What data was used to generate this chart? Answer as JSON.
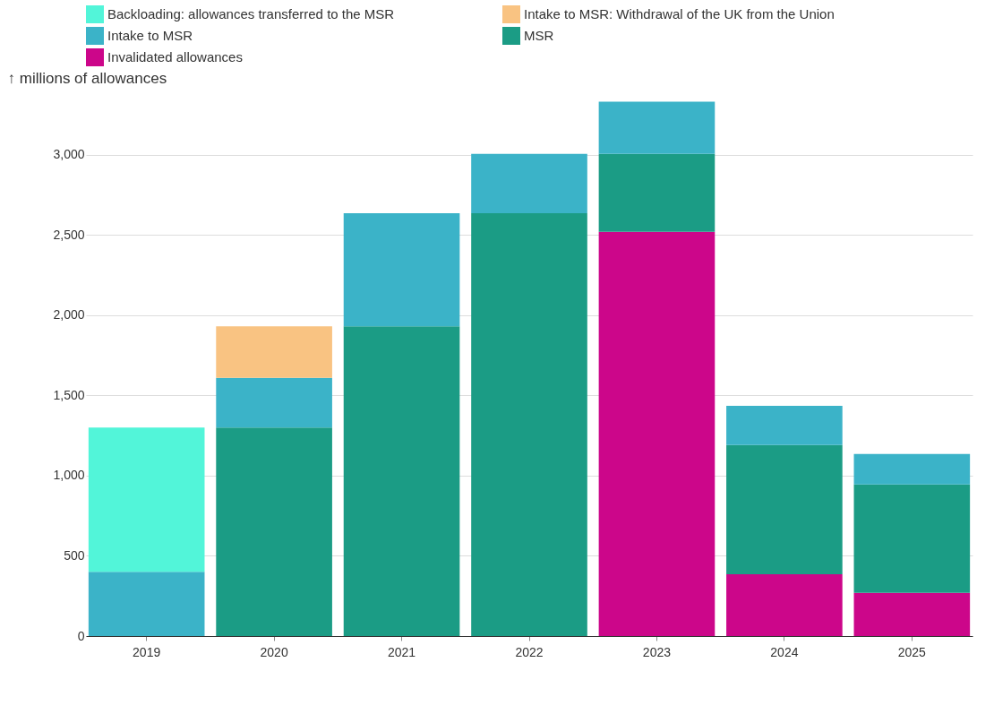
{
  "chart_data": {
    "type": "bar",
    "stacked": true,
    "ylabel": "↑ millions of allowances",
    "categories": [
      "2019",
      "2020",
      "2021",
      "2022",
      "2023",
      "2024",
      "2025"
    ],
    "series": [
      {
        "name": "Invalidated allowances",
        "color": "#cc068a",
        "values": [
          null,
          null,
          null,
          null,
          2520,
          385,
          270
        ]
      },
      {
        "name": "MSR",
        "color": "#1b9c85",
        "values": [
          null,
          1300,
          1930,
          2635,
          485,
          805,
          675
        ]
      },
      {
        "name": "Intake to MSR",
        "color": "#3bb3c8",
        "values": [
          400,
          310,
          705,
          370,
          325,
          245,
          190
        ]
      },
      {
        "name": "Intake to MSR: Withdrawal of the UK from the Union",
        "color": "#f9c382",
        "values": [
          null,
          320,
          null,
          null,
          null,
          null,
          null
        ]
      },
      {
        "name": "Backloading: allowances transferred to the MSR",
        "color": "#52f5d9",
        "values": [
          900,
          null,
          null,
          null,
          null,
          null,
          null
        ]
      }
    ],
    "ylim": [
      0,
      3350
    ],
    "yticks": [
      0,
      {
        "value": 500,
        "label": "500"
      },
      {
        "value": 1000,
        "label": "1,000"
      },
      {
        "value": 1500,
        "label": "1,500"
      },
      {
        "value": 2000,
        "label": "2,000"
      },
      {
        "value": 2500,
        "label": "2,500"
      },
      {
        "value": 3000,
        "label": "3,000"
      }
    ],
    "grid": "y",
    "legend": "top left"
  }
}
